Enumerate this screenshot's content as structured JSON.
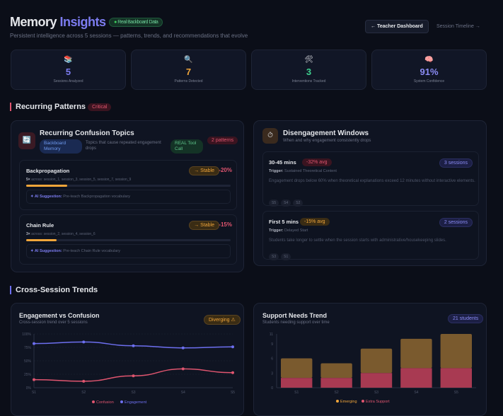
{
  "header": {
    "title_a": "Memory",
    "title_b": "Insights",
    "data_badge": "Real Backboard Data",
    "subtitle": "Persistent intelligence across 5 sessions — patterns, trends, and recommendations that evolve",
    "teacher_button": "← Teacher Dashboard",
    "timeline_link": "Session Timeline →"
  },
  "stats": [
    {
      "icon": "books-icon",
      "glyph": "📚",
      "value": "5",
      "label": "Sessions Analyzed",
      "color": "#7c7cf0"
    },
    {
      "icon": "magnifier-icon",
      "glyph": "🔍",
      "value": "7",
      "label": "Patterns Detected",
      "color": "#f0a53a"
    },
    {
      "icon": "tools-icon",
      "glyph": "🛠",
      "value": "3",
      "label": "Interventions Tracked",
      "color": "#3ecf8e"
    },
    {
      "icon": "brain-icon",
      "glyph": "🧠",
      "value": "91%",
      "label": "System Confidence",
      "color": "#8b8cf5"
    }
  ],
  "recurring": {
    "title": "Recurring Patterns",
    "badge": "Critical",
    "confusion": {
      "title": "Recurring Confusion Topics",
      "tag1": "Backboard Memory",
      "desc": "Topics that cause repeated engagement drops",
      "tag2": "REAL Tool Call",
      "count": "2 patterns",
      "items": [
        {
          "name": "Backpropagation",
          "trend": "→ Stable",
          "delta": "-20%",
          "count": "5×",
          "sessions": "across: session_1, session_3, session_5, session_7, session_9",
          "progress": 0.2,
          "suggestion_label": "✦ AI Suggestion:",
          "suggestion": "Pre-teach Backpropagation vocabulary"
        },
        {
          "name": "Chain Rule",
          "trend": "→ Stable",
          "delta": "-15%",
          "count": "3×",
          "sessions": "across: session_2, session_4, session_6",
          "progress": 0.15,
          "suggestion_label": "✦ AI Suggestion:",
          "suggestion": "Pre-teach Chain Rule vocabulary"
        }
      ]
    },
    "disengagement": {
      "title": "Disengagement Windows",
      "subtitle": "When and why engagement consistently drops",
      "items": [
        {
          "window": "30-45 mins",
          "avg": "-32% avg",
          "sessions": "3 sessions",
          "trigger_label": "Trigger:",
          "trigger": "Sustained Theoretical Content",
          "desc": "Engagement drops below 60% when theoretical explanations exceed 12 minutes without interactive elements.",
          "tags": [
            "S5",
            "S4",
            "S2"
          ]
        },
        {
          "window": "First 5 mins",
          "avg": "-15% avg",
          "sessions": "2 sessions",
          "trigger_label": "Trigger:",
          "trigger": "Delayed Start",
          "desc": "Students take longer to settle when the session starts with administrative/housekeeping slides.",
          "tags": [
            "S3",
            "S1"
          ]
        }
      ]
    }
  },
  "trends": {
    "title": "Cross-Session Trends",
    "line": {
      "title": "Engagement vs Confusion",
      "subtitle": "Cross-session trend over 5 sessions",
      "badge": "Diverging ⚠"
    },
    "bar": {
      "title": "Support Needs Trend",
      "subtitle": "Students needing support over time",
      "badge": "21 students"
    }
  },
  "chart_data": [
    {
      "type": "line",
      "categories": [
        "S1",
        "S2",
        "S3",
        "S4",
        "S5"
      ],
      "ylim": [
        0,
        100
      ],
      "yticks": [
        "0%",
        "25%",
        "50%",
        "75%",
        "100%"
      ],
      "legend": "bottom",
      "series": [
        {
          "name": "Confusion",
          "color": "#e0556f",
          "values": [
            15,
            12,
            22,
            35,
            28
          ]
        },
        {
          "name": "Engagement",
          "color": "#6d6ff0",
          "values": [
            82,
            85,
            78,
            74,
            76
          ]
        }
      ]
    },
    {
      "type": "bar",
      "stacked": true,
      "categories": [
        "S1",
        "S2",
        "S3",
        "S4",
        "S5"
      ],
      "ylim": [
        0,
        11
      ],
      "yticks": [
        "0",
        "3",
        "6",
        "9",
        "11"
      ],
      "legend": "bottom",
      "series": [
        {
          "name": "Emerging",
          "color": "#7a5a2e",
          "legend_color": "#f0a53a",
          "values": [
            4,
            3,
            5,
            6,
            7
          ]
        },
        {
          "name": "Extra Support",
          "color": "#a83a52",
          "legend_color": "#e0556f",
          "values": [
            2,
            2,
            3,
            4,
            4
          ]
        }
      ]
    }
  ]
}
